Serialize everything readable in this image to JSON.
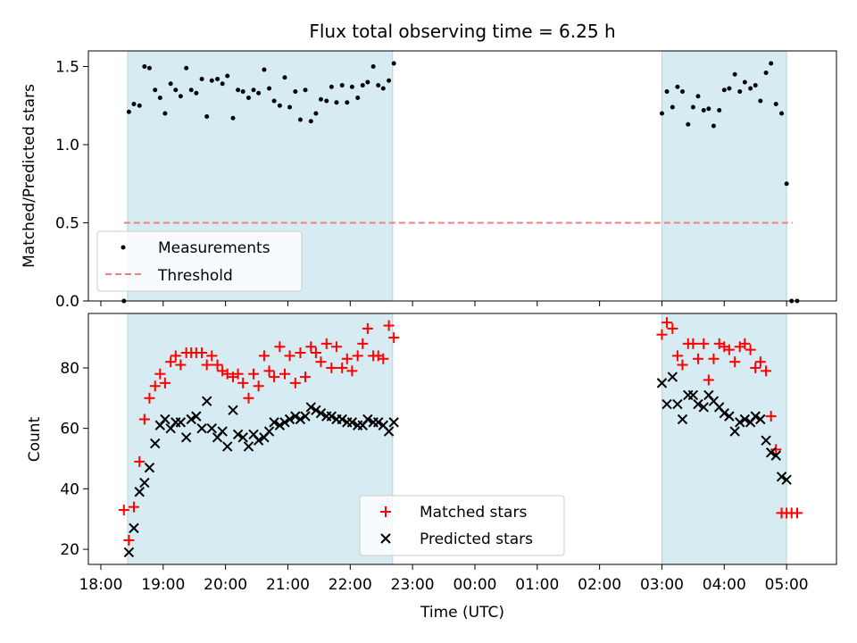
{
  "chart_data": [
    {
      "type": "scatter",
      "title": "Flux total observing time = 6.25 h",
      "xlabel": "",
      "ylabel": "Matched/Predicted stars",
      "ylim": [
        0.0,
        1.6
      ],
      "yticks": [
        "0.0",
        "0.5",
        "1.0",
        "1.5"
      ],
      "x_range_hours": [
        17.8,
        29.8
      ],
      "shaded_intervals": [
        [
          18.43,
          22.68
        ],
        [
          27.0,
          29.0
        ]
      ],
      "shade_color": "#add8e6",
      "threshold": {
        "name": "Threshold",
        "y": 0.5,
        "x": [
          18.37,
          29.1
        ],
        "color": "#f08080"
      },
      "legend_position": "lower-left",
      "series": [
        {
          "name": "Measurements",
          "color": "#000000",
          "x": [
            18.37,
            18.45,
            18.53,
            18.62,
            18.7,
            18.78,
            18.87,
            18.95,
            19.03,
            19.12,
            19.2,
            19.28,
            19.37,
            19.45,
            19.53,
            19.62,
            19.7,
            19.78,
            19.87,
            19.95,
            20.03,
            20.12,
            20.2,
            20.28,
            20.37,
            20.45,
            20.53,
            20.62,
            20.7,
            20.78,
            20.87,
            20.95,
            21.03,
            21.12,
            21.2,
            21.28,
            21.37,
            21.45,
            21.53,
            21.62,
            21.7,
            21.78,
            21.87,
            21.95,
            22.03,
            22.12,
            22.2,
            22.28,
            22.37,
            22.45,
            22.53,
            22.62,
            22.7,
            27.0,
            27.08,
            27.17,
            27.25,
            27.33,
            27.42,
            27.5,
            27.58,
            27.67,
            27.75,
            27.83,
            27.92,
            28.0,
            28.08,
            28.17,
            28.25,
            28.33,
            28.42,
            28.5,
            28.58,
            28.67,
            28.75,
            28.83,
            28.92,
            29.0,
            29.08,
            29.17
          ],
          "y": [
            0.0,
            1.21,
            1.26,
            1.25,
            1.5,
            1.49,
            1.35,
            1.3,
            1.2,
            1.39,
            1.35,
            1.31,
            1.49,
            1.35,
            1.33,
            1.42,
            1.18,
            1.41,
            1.42,
            1.39,
            1.44,
            1.17,
            1.35,
            1.34,
            1.3,
            1.35,
            1.33,
            1.48,
            1.36,
            1.28,
            1.25,
            1.43,
            1.24,
            1.34,
            1.16,
            1.35,
            1.15,
            1.2,
            1.29,
            1.28,
            1.37,
            1.27,
            1.38,
            1.27,
            1.37,
            1.3,
            1.38,
            1.4,
            1.5,
            1.38,
            1.36,
            1.41,
            1.52,
            1.2,
            1.34,
            1.24,
            1.37,
            1.34,
            1.13,
            1.24,
            1.31,
            1.22,
            1.23,
            1.12,
            1.22,
            1.35,
            1.36,
            1.45,
            1.34,
            1.4,
            1.36,
            1.38,
            1.28,
            1.46,
            1.52,
            1.26,
            1.2,
            0.75,
            0.0,
            0.0
          ]
        }
      ]
    },
    {
      "type": "scatter",
      "title": "",
      "xlabel": "Time (UTC)",
      "ylabel": "Count",
      "ylim": [
        15,
        98
      ],
      "yticks": [
        "20",
        "40",
        "60",
        "80"
      ],
      "x_range_hours": [
        17.8,
        29.8
      ],
      "xticks": [
        {
          "h": 18,
          "label": "18:00"
        },
        {
          "h": 19,
          "label": "19:00"
        },
        {
          "h": 20,
          "label": "20:00"
        },
        {
          "h": 21,
          "label": "21:00"
        },
        {
          "h": 22,
          "label": "22:00"
        },
        {
          "h": 23,
          "label": "23:00"
        },
        {
          "h": 24,
          "label": "00:00"
        },
        {
          "h": 25,
          "label": "01:00"
        },
        {
          "h": 26,
          "label": "02:00"
        },
        {
          "h": 27,
          "label": "03:00"
        },
        {
          "h": 28,
          "label": "04:00"
        },
        {
          "h": 29,
          "label": "05:00"
        }
      ],
      "shaded_intervals": [
        [
          18.43,
          22.68
        ],
        [
          27.0,
          29.0
        ]
      ],
      "shade_color": "#add8e6",
      "legend_position": "lower-center",
      "series": [
        {
          "name": "Matched stars",
          "marker": "+",
          "color": "#ff0000",
          "x": [
            18.37,
            18.45,
            18.53,
            18.62,
            18.7,
            18.78,
            18.87,
            18.95,
            19.03,
            19.12,
            19.2,
            19.28,
            19.37,
            19.45,
            19.53,
            19.62,
            19.7,
            19.78,
            19.87,
            19.95,
            20.03,
            20.12,
            20.2,
            20.28,
            20.37,
            20.45,
            20.53,
            20.62,
            20.7,
            20.78,
            20.87,
            20.95,
            21.03,
            21.12,
            21.2,
            21.28,
            21.37,
            21.45,
            21.53,
            21.62,
            21.7,
            21.78,
            21.87,
            21.95,
            22.03,
            22.12,
            22.2,
            22.28,
            22.37,
            22.45,
            22.53,
            22.62,
            22.7,
            27.0,
            27.08,
            27.17,
            27.25,
            27.33,
            27.42,
            27.5,
            27.58,
            27.67,
            27.75,
            27.83,
            27.92,
            28.0,
            28.08,
            28.17,
            28.25,
            28.33,
            28.42,
            28.5,
            28.58,
            28.67,
            28.75,
            28.83,
            28.92,
            29.0,
            29.08,
            29.17
          ],
          "y": [
            33,
            23,
            34,
            49,
            63,
            70,
            74,
            78,
            75,
            82,
            84,
            81,
            85,
            85,
            85,
            85,
            81,
            84,
            81,
            79,
            78,
            77,
            78,
            75,
            70,
            78,
            74,
            84,
            79,
            77,
            87,
            78,
            84,
            75,
            85,
            77,
            87,
            85,
            82,
            88,
            80,
            87,
            80,
            83,
            79,
            84,
            88,
            93,
            84,
            84,
            83,
            94,
            90,
            91,
            95,
            93,
            84,
            81,
            88,
            88,
            83,
            88,
            76,
            83,
            88,
            87,
            86,
            82,
            87,
            88,
            86,
            80,
            82,
            79,
            64,
            53,
            32,
            32,
            32,
            32
          ]
        },
        {
          "name": "Predicted stars",
          "marker": "x",
          "color": "#000000",
          "x": [
            18.45,
            18.53,
            18.62,
            18.7,
            18.78,
            18.87,
            18.95,
            19.03,
            19.12,
            19.2,
            19.28,
            19.37,
            19.45,
            19.53,
            19.62,
            19.7,
            19.78,
            19.87,
            19.95,
            20.03,
            20.12,
            20.2,
            20.28,
            20.37,
            20.45,
            20.53,
            20.62,
            20.7,
            20.78,
            20.87,
            20.95,
            21.03,
            21.12,
            21.2,
            21.28,
            21.37,
            21.45,
            21.53,
            21.62,
            21.7,
            21.78,
            21.87,
            21.95,
            22.03,
            22.12,
            22.2,
            22.28,
            22.37,
            22.45,
            22.53,
            22.62,
            22.7,
            27.0,
            27.08,
            27.17,
            27.25,
            27.33,
            27.42,
            27.5,
            27.58,
            27.67,
            27.75,
            27.83,
            27.92,
            28.0,
            28.08,
            28.17,
            28.25,
            28.33,
            28.42,
            28.5,
            28.58,
            28.67,
            28.75,
            28.83,
            28.92,
            29.0
          ],
          "y": [
            19,
            27,
            39,
            42,
            47,
            55,
            61,
            63,
            60,
            62,
            62,
            57,
            63,
            64,
            60,
            69,
            60,
            57,
            59,
            54,
            66,
            58,
            57,
            54,
            58,
            56,
            57,
            59,
            62,
            61,
            62,
            63,
            64,
            63,
            64,
            67,
            66,
            65,
            64,
            64,
            63,
            63,
            62,
            62,
            61,
            61,
            63,
            62,
            62,
            61,
            59,
            62,
            75,
            68,
            77,
            68,
            63,
            71,
            71,
            68,
            67,
            71,
            69,
            67,
            65,
            64,
            59,
            62,
            63,
            62,
            64,
            63,
            56,
            52,
            51,
            44,
            43
          ]
        }
      ]
    }
  ]
}
